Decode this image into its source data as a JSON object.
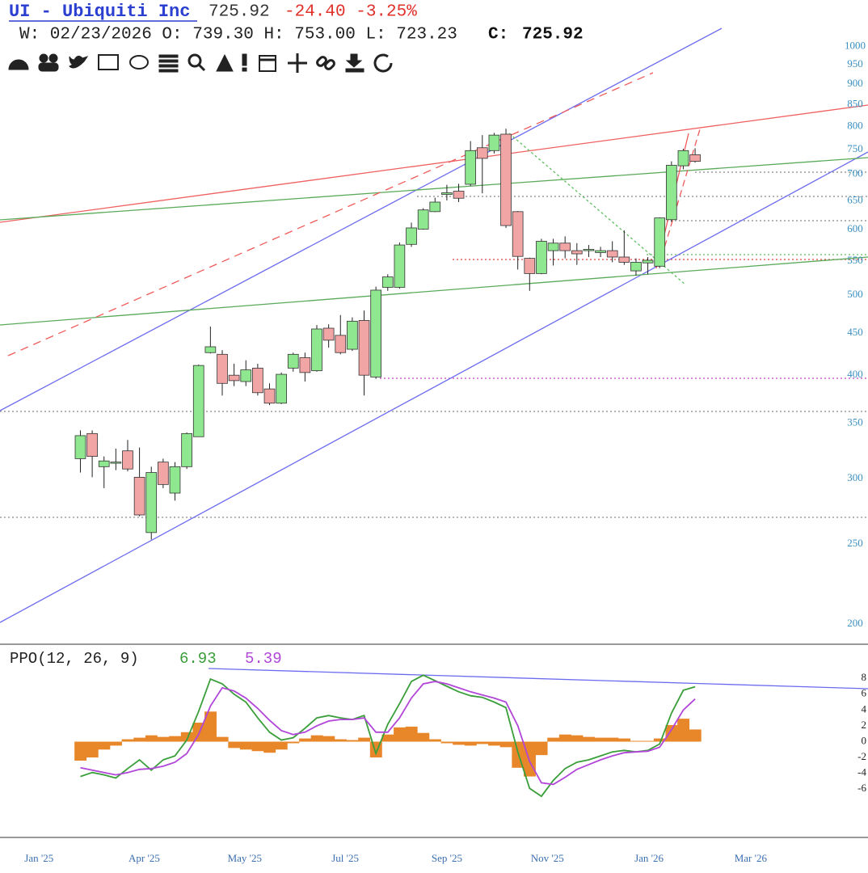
{
  "header": {
    "symbol": "UI - Ubiquiti Inc",
    "price": "725.92",
    "change": "-24.40 -3.25%",
    "quote": "W: 02/23/2026 O: 739.30 H: 753.00 L: 723.23",
    "close_label": "C:",
    "close_value": "725.92"
  },
  "chart_data": [
    {
      "type": "candlestick",
      "x": [
        0,
        1,
        2,
        3,
        4,
        5,
        6,
        7,
        8,
        9,
        10,
        11,
        12,
        13,
        14,
        15,
        16,
        17,
        18,
        19,
        20,
        21,
        22,
        23,
        24,
        25,
        26,
        27,
        28,
        29,
        30,
        31,
        32,
        33,
        34,
        35,
        36,
        37,
        38,
        39,
        40,
        41,
        42,
        43,
        44,
        45,
        46,
        47,
        48,
        49,
        50,
        51,
        52
      ],
      "xlim": [
        -6.8,
        64.3
      ],
      "xticks": [
        {
          "value": -3.5,
          "label": "Jan '25"
        },
        {
          "value": 5.4,
          "label": "Apr '25"
        },
        {
          "value": 13.9,
          "label": "May '25"
        },
        {
          "value": 22.4,
          "label": "Jul '25"
        },
        {
          "value": 31,
          "label": "Sep '25"
        },
        {
          "value": 39.5,
          "label": "Nov '25"
        },
        {
          "value": 48.1,
          "label": "Jan '26"
        },
        {
          "value": 56.7,
          "label": "Mar '26"
        }
      ],
      "ylim": [
        189,
        1040
      ],
      "log_scale": true,
      "yticks": [
        200,
        250,
        300,
        350,
        400,
        450,
        500,
        550,
        600,
        650,
        700,
        750,
        800,
        850,
        900,
        950,
        1000
      ],
      "up_color": "#8fe88f",
      "down_color": "#f2a5a5",
      "open": [
        317,
        340,
        310,
        313,
        324,
        301,
        258,
        314,
        288,
        310,
        337,
        426,
        424,
        400,
        393,
        408,
        385,
        370,
        408,
        420,
        405,
        456,
        447,
        430,
        466,
        398,
        511,
        511,
        576,
        601,
        631,
        662,
        668,
        681,
        754,
        748,
        783,
        631,
        554,
        531,
        566,
        578,
        566,
        566,
        563,
        566,
        556,
        535,
        547,
        542,
        617,
        717,
        739.3
      ],
      "high": [
        343,
        343,
        319,
        326,
        334,
        327,
        310,
        317,
        314,
        341,
        412,
        458,
        429,
        413,
        417,
        413,
        391,
        403,
        426,
        426,
        460,
        461,
        473,
        470,
        479,
        512,
        530,
        579,
        612,
        637,
        656,
        680,
        682,
        768,
        781,
        786,
        795,
        632,
        555,
        585,
        585,
        589,
        578,
        575,
        572,
        581,
        599,
        554,
        556,
        621,
        726,
        752,
        753
      ],
      "low": [
        305,
        301,
        292,
        307,
        306,
        270,
        253,
        292,
        282,
        308,
        337,
        425,
        378,
        388,
        388,
        378,
        368,
        369,
        404,
        393,
        404,
        432,
        424,
        428,
        378,
        396,
        506,
        509,
        572,
        600,
        630,
        651,
        648,
        678,
        664,
        742,
        603,
        537,
        506,
        530,
        543,
        554,
        544,
        556,
        556,
        548,
        544,
        528,
        530,
        539,
        613,
        710,
        723.23
      ],
      "close": [
        338,
        319,
        315,
        314,
        308,
        271,
        305,
        295,
        310,
        340,
        411,
        433,
        391,
        394,
        406,
        381,
        370,
        401,
        424,
        403,
        455,
        441,
        426,
        465,
        400,
        507,
        526,
        575,
        603,
        634,
        648,
        665,
        655,
        748,
        732,
        781,
        607,
        557,
        531,
        581,
        578,
        566,
        561,
        568,
        566,
        556,
        548,
        548,
        551,
        620,
        718,
        748,
        725.92
      ]
    },
    {
      "type": "line",
      "title": "PPO(12, 26, 9)",
      "x": [
        0,
        1,
        2,
        3,
        4,
        5,
        6,
        7,
        8,
        9,
        10,
        11,
        12,
        13,
        14,
        15,
        16,
        17,
        18,
        19,
        20,
        21,
        22,
        23,
        24,
        25,
        26,
        27,
        28,
        29,
        30,
        31,
        32,
        33,
        34,
        35,
        36,
        37,
        38,
        39,
        40,
        41,
        42,
        43,
        44,
        45,
        46,
        47,
        48,
        49,
        50,
        51,
        52
      ],
      "xlim": [
        -6.8,
        64.3
      ],
      "ylim": [
        -12,
        12
      ],
      "yticks": [
        8,
        6,
        4,
        2,
        0,
        -2,
        -4,
        -6
      ],
      "series": [
        {
          "color": "#3a9e3a",
          "values": [
            -4.4,
            -3.9,
            -4.2,
            -4.6,
            -3.4,
            -2.3,
            -3.6,
            -2.3,
            -1.8,
            0.2,
            3.8,
            7.9,
            7.3,
            6.0,
            5.0,
            3.0,
            1.2,
            0.2,
            0.5,
            1.7,
            3.0,
            3.3,
            3.0,
            2.8,
            3.3,
            -1.5,
            2.2,
            4.8,
            7.6,
            8.4,
            7.7,
            7.0,
            6.3,
            5.8,
            5.6,
            5.0,
            4.3,
            -1.3,
            -5.9,
            -6.9,
            -4.9,
            -3.4,
            -2.6,
            -2.3,
            -1.8,
            -1.3,
            -1.1,
            -1.3,
            -1.1,
            -0.3,
            3.6,
            6.5,
            6.93
          ]
        },
        {
          "color": "#b146d8",
          "values": [
            -3.3,
            -3.6,
            -3.9,
            -4.2,
            -3.9,
            -3.5,
            -3.4,
            -3.1,
            -2.6,
            -1.5,
            0.9,
            4.5,
            6.8,
            6.4,
            5.5,
            4.2,
            2.7,
            1.4,
            0.9,
            1.2,
            2.0,
            2.6,
            2.8,
            2.8,
            3.0,
            1.2,
            1.2,
            3.0,
            5.5,
            7.3,
            7.6,
            7.3,
            6.8,
            6.3,
            5.9,
            5.5,
            5.0,
            2.0,
            -2.5,
            -5.2,
            -5.4,
            -4.5,
            -3.5,
            -2.9,
            -2.3,
            -1.8,
            -1.4,
            -1.3,
            -1.2,
            -0.7,
            1.5,
            4.0,
            5.39
          ]
        },
        {
          "type": "bar",
          "color": "#e8872a",
          "values": [
            -2.4,
            -2.0,
            -1.0,
            -0.5,
            0.3,
            0.5,
            0.8,
            0.6,
            0.7,
            1.2,
            2.4,
            3.8,
            0.6,
            -0.8,
            -1.0,
            -1.2,
            -1.4,
            -1.0,
            -0.2,
            0.4,
            0.8,
            0.7,
            0.3,
            0.2,
            0.5,
            -2.0,
            0.9,
            1.8,
            1.9,
            1.1,
            0.3,
            -0.2,
            -0.4,
            -0.5,
            -0.3,
            -0.5,
            -0.7,
            -3.3,
            -4.4,
            -1.7,
            0.5,
            0.9,
            0.8,
            0.6,
            0.5,
            0.5,
            0.4,
            0.1,
            0.1,
            0.4,
            2.1,
            2.9,
            1.54
          ]
        }
      ]
    }
  ]
}
